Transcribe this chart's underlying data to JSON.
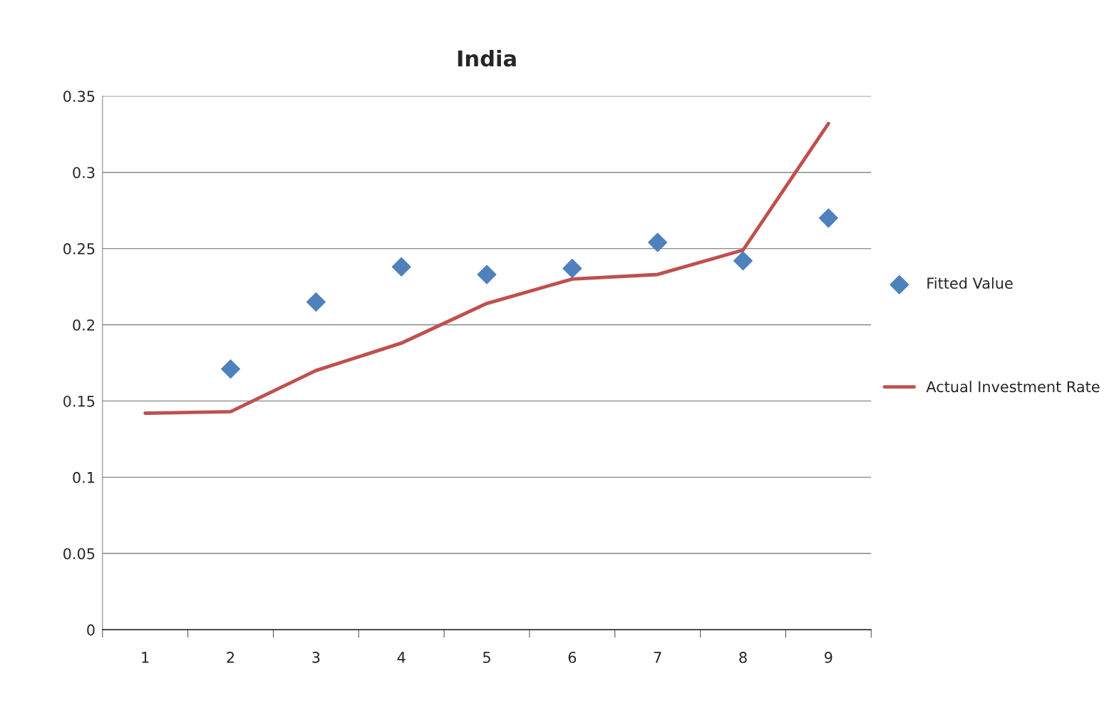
{
  "chart_data": {
    "type": "line",
    "title": "India",
    "categories": [
      "1",
      "2",
      "3",
      "4",
      "5",
      "6",
      "7",
      "8",
      "9"
    ],
    "series": [
      {
        "name": "Fitted Value",
        "type": "scatter",
        "marker": "diamond",
        "color": "#4f81bd",
        "values": [
          null,
          0.171,
          0.215,
          0.238,
          0.233,
          0.237,
          0.254,
          0.242,
          0.27
        ]
      },
      {
        "name": "Actual Investment Rate",
        "marker": "none",
        "color": "#c0504d",
        "values": [
          0.142,
          0.143,
          0.17,
          0.188,
          0.214,
          0.23,
          0.233,
          0.249,
          0.332
        ]
      }
    ],
    "ylim": [
      0,
      0.35
    ],
    "yticks": [
      0,
      0.05,
      0.1,
      0.15,
      0.2,
      0.25,
      0.3,
      0.35
    ],
    "grid": "y",
    "legend": "right"
  }
}
